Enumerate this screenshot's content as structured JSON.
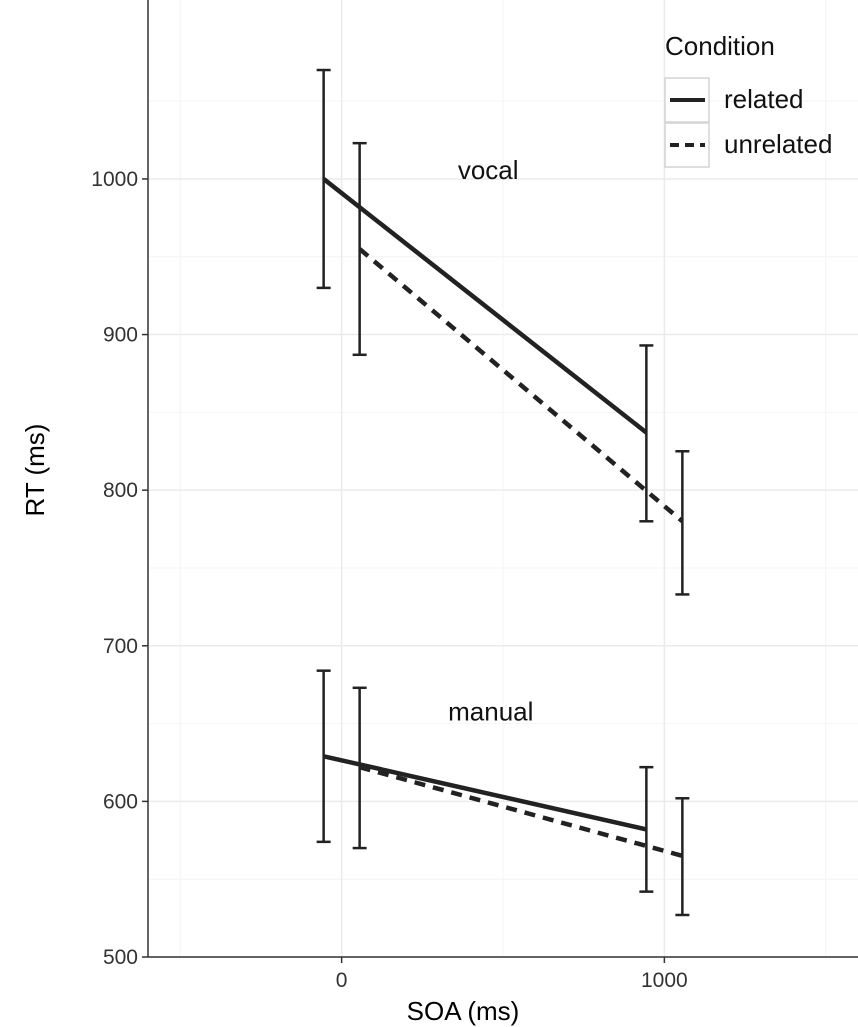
{
  "chart_data": {
    "type": "line",
    "xlabel": "SOA (ms)",
    "ylabel": "RT (ms)",
    "xlim": [
      -600,
      1600
    ],
    "ylim": [
      500,
      1115
    ],
    "xticks": [
      0,
      1000
    ],
    "yticks": [
      500,
      600,
      700,
      800,
      900,
      1000
    ],
    "grid": true,
    "legend": {
      "title": "Condition",
      "position": "top-right",
      "entries": [
        "related",
        "unrelated"
      ]
    },
    "annotations": [
      {
        "text": "vocal",
        "x": 360,
        "y": 1000
      },
      {
        "text": "manual",
        "x": 330,
        "y": 652
      }
    ],
    "series": [
      {
        "name": "related",
        "task": "vocal",
        "style": "solid",
        "x": [
          0,
          1000
        ],
        "y": [
          1000,
          837
        ],
        "err_low": [
          930,
          780
        ],
        "err_high": [
          1070,
          893
        ]
      },
      {
        "name": "unrelated",
        "task": "vocal",
        "style": "dashed",
        "x": [
          0,
          1000
        ],
        "y": [
          955,
          780
        ],
        "err_low": [
          887,
          733
        ],
        "err_high": [
          1023,
          825
        ]
      },
      {
        "name": "related",
        "task": "manual",
        "style": "solid",
        "x": [
          0,
          1000
        ],
        "y": [
          629,
          582
        ],
        "err_low": [
          574,
          542
        ],
        "err_high": [
          684,
          622
        ]
      },
      {
        "name": "unrelated",
        "task": "manual",
        "style": "dashed",
        "x": [
          0,
          1000
        ],
        "y": [
          622,
          565
        ],
        "err_low": [
          570,
          527
        ],
        "err_high": [
          673,
          602
        ]
      }
    ]
  }
}
